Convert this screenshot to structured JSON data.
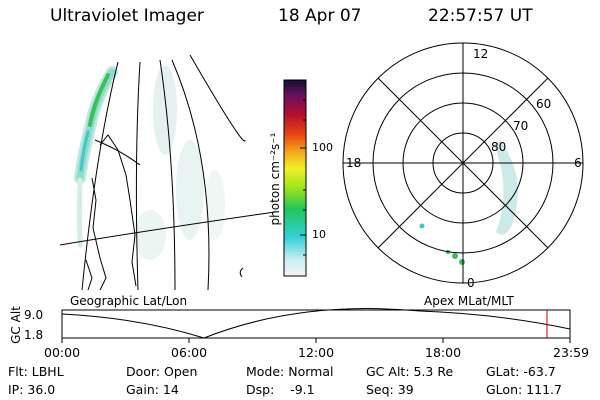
{
  "header": {
    "instrument": "Ultraviolet Imager",
    "date": "18 Apr 07",
    "time": "22:57:57 UT"
  },
  "colorbar": {
    "ylabel": "photon cm⁻²s⁻¹",
    "ticks": [
      "100",
      "10"
    ]
  },
  "polar_plot": {
    "hour_labels": {
      "top": "12",
      "left": "18",
      "right": "6",
      "bottom": "0"
    },
    "lat_labels": [
      "60",
      "70",
      "80"
    ]
  },
  "panels": {
    "left_caption": "Geographic Lat/Lon",
    "right_caption": "Apex MLat/MLT"
  },
  "altitude_plot": {
    "ylabel": "GC Alt",
    "y_max": "9.0",
    "y_min": "1.8",
    "x_ticks": [
      "00:00",
      "06:00",
      "12:00",
      "18:00",
      "23:59"
    ],
    "marker_color": "#cc0000"
  },
  "status": {
    "flt": "Flt: LBHL",
    "door": "Door: Open",
    "mode": "Mode: Normal",
    "gc_alt": "GC Alt: 5.3 Re",
    "glat": "GLat: -63.7",
    "ip": "IP: 36.0",
    "gain": "Gain: 14",
    "dsp": "Dsp:    -9.1",
    "seq": "Seq: 39",
    "glon": "GLon: 111.7"
  }
}
